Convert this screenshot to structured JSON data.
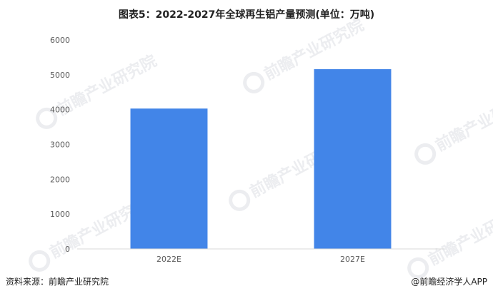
{
  "chart_data": {
    "type": "bar",
    "title": "图表5：2022-2027年全球再生铝产量预测(单位：万吨)",
    "categories": [
      "2022E",
      "2027E"
    ],
    "series": [
      {
        "values": [
          4030,
          5160
        ]
      }
    ],
    "ylim": [
      0,
      6000
    ],
    "yticks": [
      0,
      1000,
      2000,
      3000,
      4000,
      5000,
      6000
    ],
    "xlabel": "",
    "ylabel": "",
    "grid": false,
    "legend": "none",
    "bar_color": "#4285e8"
  },
  "footer": {
    "source": "资料来源：前瞻产业研究院",
    "credit": "@前瞻经济学人APP"
  },
  "watermark": {
    "text": "前瞻产业研究院"
  }
}
